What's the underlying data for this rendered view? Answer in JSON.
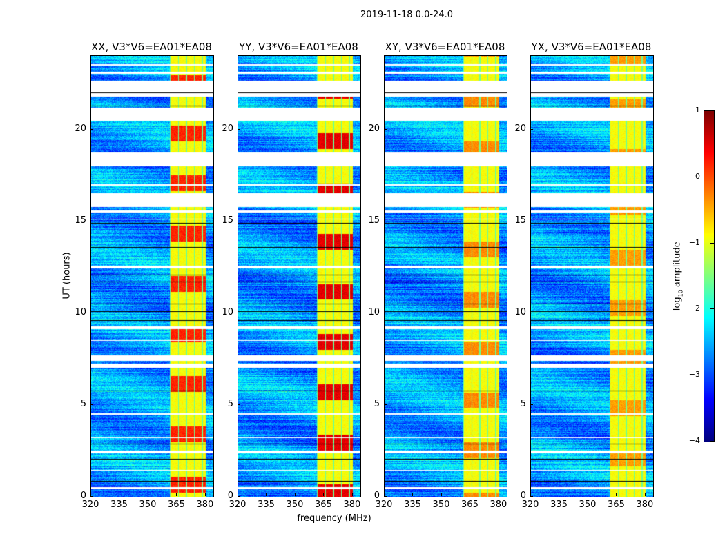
{
  "chart_data": {
    "type": "heatmap",
    "suptitle": "2019-11-18 0.0-24.0",
    "xlabel": "frequency (MHz)",
    "ylabel": "UT (hours)",
    "xlim": [
      320,
      384
    ],
    "ylim": [
      0,
      24
    ],
    "xticks": [
      "320",
      "335",
      "350",
      "365",
      "380"
    ],
    "xtick_values": [
      320,
      335,
      350,
      365,
      380
    ],
    "yticks": [
      "0",
      "5",
      "10",
      "15",
      "20"
    ],
    "ytick_values": [
      0,
      5,
      10,
      15,
      20
    ],
    "panels": [
      {
        "title": "XX, V3*V6=EA01*EA08",
        "strong_rfi": 0.2
      },
      {
        "title": "YY, V3*V6=EA01*EA08",
        "strong_rfi": 0.5
      },
      {
        "title": "XY, V3*V6=EA01*EA08",
        "strong_rfi": -0.3
      },
      {
        "title": "YX, V3*V6=EA01*EA08",
        "strong_rfi": -0.4
      }
    ],
    "flagged_gaps_hours": [
      [
        0.45,
        0.55
      ],
      [
        1.45,
        1.5
      ],
      [
        2.4,
        2.55
      ],
      [
        3.2,
        3.25
      ],
      [
        4.5,
        4.55
      ],
      [
        7.05,
        7.25
      ],
      [
        7.4,
        7.7
      ],
      [
        8.5,
        8.55
      ],
      [
        9.15,
        9.3
      ],
      [
        12.45,
        12.6
      ],
      [
        15.1,
        15.15
      ],
      [
        15.5,
        15.6
      ],
      [
        15.8,
        16.55
      ],
      [
        16.95,
        17.05
      ],
      [
        18.0,
        18.76
      ],
      [
        20.5,
        21.2
      ],
      [
        21.8,
        22.66
      ],
      [
        23.05,
        23.15
      ],
      [
        23.5,
        23.55
      ]
    ],
    "rfi_band_mhz": [
      361,
      380
    ],
    "colorbar": {
      "label": "log10 amplitude",
      "label_base": "log",
      "label_sub": "10",
      "label_rest": " amplitude",
      "range": [
        -4,
        1
      ],
      "ticks": [
        "1",
        "0",
        "−1",
        "−2",
        "−3",
        "−4"
      ],
      "tick_values": [
        1,
        0,
        -1,
        -2,
        -3,
        -4
      ],
      "colormap": "jet"
    }
  }
}
